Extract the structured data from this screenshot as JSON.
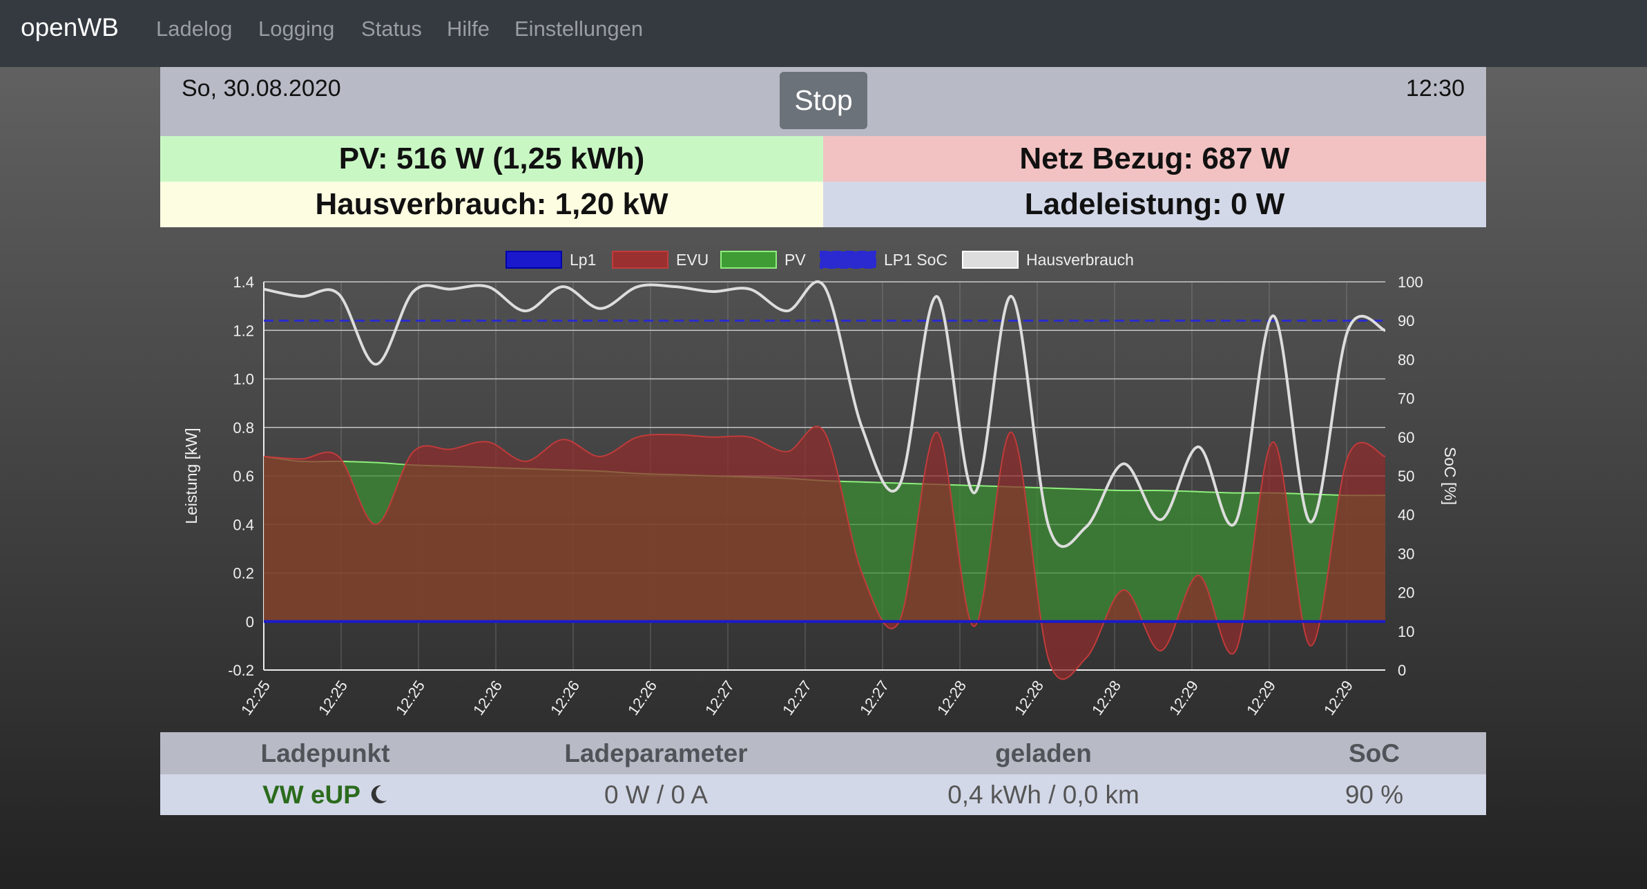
{
  "nav": {
    "brand": "openWB",
    "links": [
      "Ladelog",
      "Logging",
      "Status",
      "Hilfe",
      "Einstellungen"
    ]
  },
  "header": {
    "date": "So, 30.08.2020",
    "time": "12:30",
    "stop_label": "Stop"
  },
  "summary": {
    "pv": "PV: 516 W (1,25 kWh)",
    "netz": "Netz Bezug: 687 W",
    "haus": "Hausverbrauch: 1,20 kW",
    "lade": "Ladeleistung: 0 W"
  },
  "chart_data": {
    "type": "line",
    "ylabel": "Leistung [kW]",
    "y2label": "SoC [%]",
    "ylim": [
      -0.2,
      1.4
    ],
    "y2lim": [
      0,
      100
    ],
    "yticks": [
      "1.4",
      "1.2",
      "1.0",
      "0.8",
      "0.6",
      "0.4",
      "0.2",
      "0",
      "-0.2"
    ],
    "y2ticks": [
      "100",
      "90",
      "80",
      "70",
      "60",
      "50",
      "40",
      "30",
      "20",
      "10",
      "0"
    ],
    "x_tick_labels": [
      "12:25",
      "12:25",
      "12:25",
      "12:26",
      "12:26",
      "12:26",
      "12:27",
      "12:27",
      "12:27",
      "12:28",
      "12:28",
      "12:28",
      "12:29",
      "12:29",
      "12:29"
    ],
    "legend_position": "top-center",
    "colors": {
      "lp1": "#1a1acc",
      "evu": "#b43434",
      "pv": "#3f9c35",
      "soc": "#2a2ad0",
      "haus": "#dddddd"
    },
    "series": [
      {
        "name": "Lp1",
        "values": [
          0,
          0,
          0,
          0,
          0,
          0,
          0,
          0,
          0,
          0,
          0,
          0,
          0,
          0,
          0,
          0,
          0,
          0,
          0,
          0,
          0,
          0,
          0,
          0,
          0,
          0,
          0,
          0,
          0,
          0,
          0
        ]
      },
      {
        "name": "EVU",
        "values": [
          0.68,
          0.67,
          0.68,
          0.4,
          0.7,
          0.71,
          0.74,
          0.66,
          0.75,
          0.68,
          0.76,
          0.77,
          0.76,
          0.76,
          0.7,
          0.78,
          0.2,
          0.0,
          0.78,
          -0.02,
          0.78,
          -0.16,
          -0.15,
          0.13,
          -0.12,
          0.19,
          -0.12,
          0.74,
          -0.1,
          0.68,
          0.68
        ]
      },
      {
        "name": "PV",
        "values": [
          0.68,
          0.66,
          0.66,
          0.655,
          0.645,
          0.64,
          0.635,
          0.63,
          0.625,
          0.62,
          0.61,
          0.605,
          0.6,
          0.595,
          0.59,
          0.58,
          0.575,
          0.57,
          0.565,
          0.56,
          0.555,
          0.55,
          0.545,
          0.54,
          0.54,
          0.535,
          0.53,
          0.53,
          0.525,
          0.52,
          0.52
        ]
      },
      {
        "name": "LP1 SoC",
        "values": [
          90,
          90,
          90,
          90,
          90,
          90,
          90,
          90,
          90,
          90,
          90,
          90,
          90,
          90,
          90,
          90,
          90,
          90,
          90,
          90,
          90,
          90,
          90,
          90,
          90,
          90,
          90,
          90,
          90,
          90,
          90
        ]
      },
      {
        "name": "Hausverbrauch",
        "values": [
          1.37,
          1.34,
          1.35,
          1.06,
          1.36,
          1.37,
          1.38,
          1.28,
          1.38,
          1.29,
          1.38,
          1.38,
          1.36,
          1.37,
          1.28,
          1.38,
          0.8,
          0.56,
          1.34,
          0.53,
          1.34,
          0.39,
          0.39,
          0.65,
          0.42,
          0.72,
          0.41,
          1.26,
          0.41,
          1.2,
          1.2
        ]
      }
    ]
  },
  "table": {
    "headers": [
      "Ladepunkt",
      "Ladeparameter",
      "geladen",
      "SoC"
    ],
    "row": {
      "name": "VW eUP",
      "icon": "moon-icon",
      "ladeparameter": "0 W / 0 A",
      "geladen": "0,4 kWh / 0,0 km",
      "soc": "90 %"
    }
  }
}
